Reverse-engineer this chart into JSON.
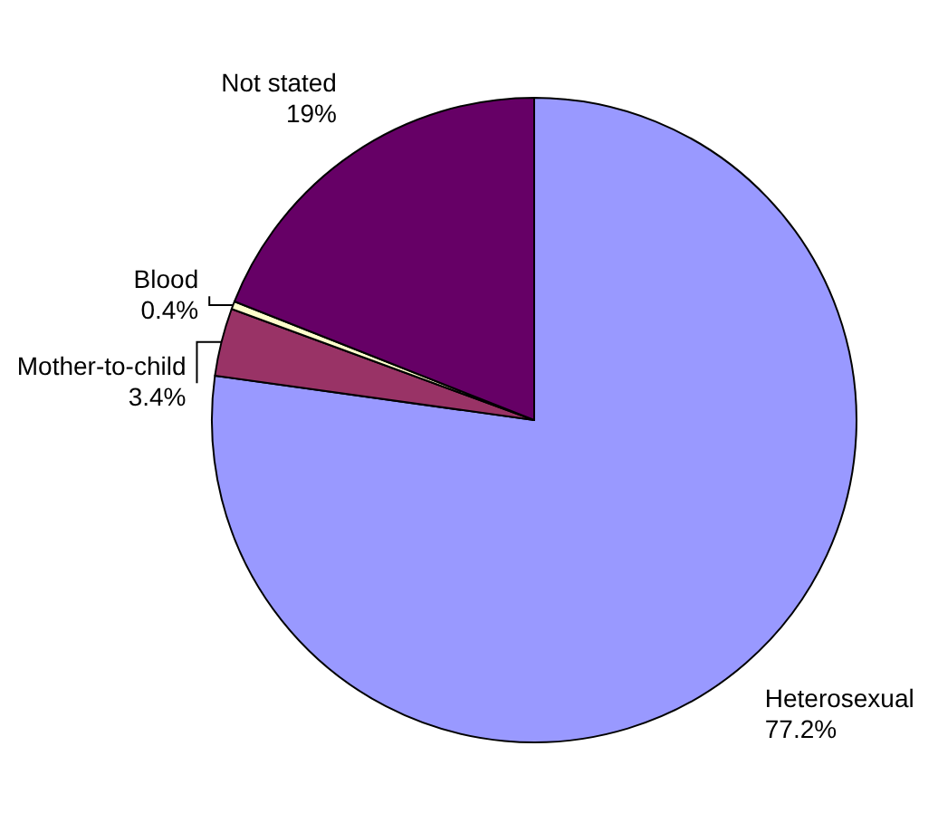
{
  "chart_data": {
    "type": "pie",
    "categories": [
      "Heterosexual",
      "Mother-to-child",
      "Blood",
      "Not stated"
    ],
    "values": [
      77.2,
      3.4,
      0.4,
      19
    ],
    "colors": [
      "#9999ff",
      "#993366",
      "#ffffcc",
      "#660066"
    ],
    "value_labels": [
      "77.2%",
      "3.4%",
      "0.4%",
      "19%"
    ]
  }
}
